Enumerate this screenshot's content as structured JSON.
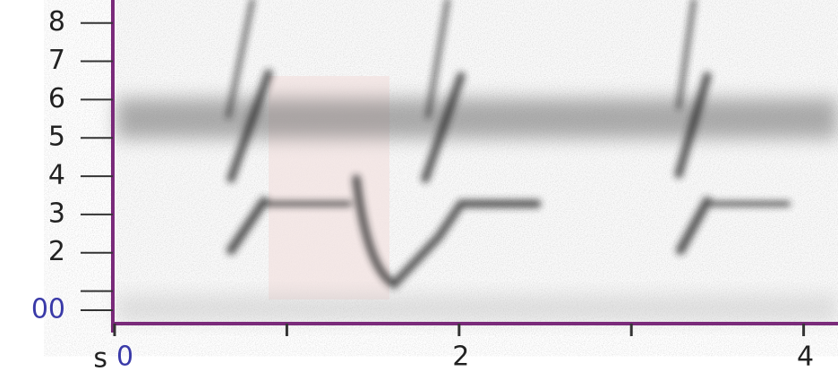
{
  "chart_data": {
    "type": "spectrogram",
    "x_label": "s",
    "xlim": [
      0,
      4.2
    ],
    "xticks": [
      0,
      {
        "value": 1,
        "label": null
      },
      2,
      {
        "value": 3,
        "label": null
      },
      4
    ],
    "ylim": [
      0.15,
      8.6
    ],
    "yticks": [
      {
        "value": 0.5,
        "label": "00"
      },
      {
        "value": 1,
        "label": null
      },
      2,
      3,
      4,
      5,
      6,
      7,
      8
    ],
    "axis_color": "#7a2a7a",
    "tick_colors": {
      "00": "#3a3aa8",
      "0": "#3a3aa8"
    }
  }
}
